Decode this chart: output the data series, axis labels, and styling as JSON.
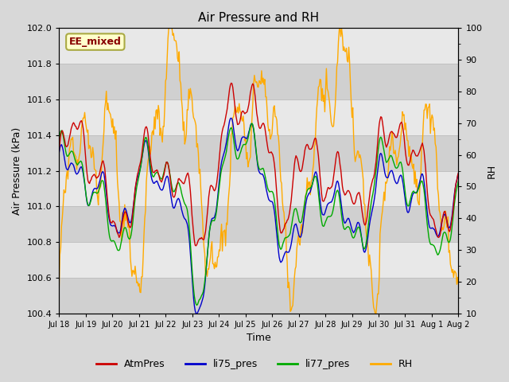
{
  "title": "Air Pressure and RH",
  "xlabel": "Time",
  "ylabel_left": "Air Pressure (kPa)",
  "ylabel_right": "RH",
  "annotation": "EE_mixed",
  "ylim_left": [
    100.4,
    102.0
  ],
  "ylim_right": [
    10,
    100
  ],
  "yticks_left": [
    100.4,
    100.6,
    100.8,
    101.0,
    101.2,
    101.4,
    101.6,
    101.8,
    102.0
  ],
  "yticks_right": [
    10,
    20,
    30,
    40,
    50,
    60,
    70,
    80,
    90,
    100
  ],
  "colors": {
    "AtmPres": "#cc0000",
    "li75_pres": "#0000cc",
    "li77_pres": "#00aa00",
    "RH": "#ffaa00"
  },
  "linewidth": 1.0,
  "fig_bg_color": "#d8d8d8",
  "plot_bg_color": "#e8e8e8",
  "band_color_dark": "#d0d0d0",
  "band_color_light": "#e8e8e8",
  "grid_line_color": "#c0c0c0",
  "legend_labels": [
    "AtmPres",
    "li75_pres",
    "li77_pres",
    "RH"
  ],
  "xtick_labels": [
    "Jul 18",
    "Jul 19",
    "Jul 20",
    "Jul 21",
    "Jul 22",
    "Jul 23",
    "Jul 24",
    "Jul 25",
    "Jul 26",
    "Jul 27",
    "Jul 28",
    "Jul 29",
    "Jul 30",
    "Jul 31",
    "Aug 1",
    "Aug 2"
  ],
  "n_points": 500,
  "annotation_facecolor": "#ffffcc",
  "annotation_edgecolor": "#aaaa44",
  "annotation_textcolor": "#880000"
}
